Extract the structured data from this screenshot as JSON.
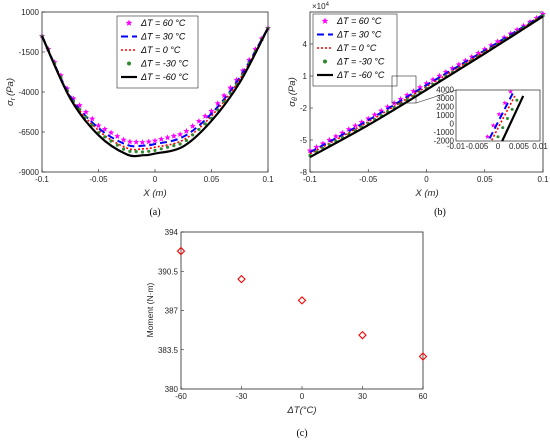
{
  "captions": {
    "a": "(a)",
    "b": "(b)",
    "c": "(c)"
  },
  "colors": {
    "p60": "#ff00ff",
    "p30": "#0000ff",
    "p0": "#ff0000",
    "m30": "#2e8b2e",
    "m60": "#000000",
    "moment": "#ff0000",
    "axis": "#262626"
  },
  "chart_data": [
    {
      "type": "line",
      "panel": "a",
      "xlabel": "X (m)",
      "ylabel": "σ_r (Pa)",
      "ylabel_main": "σ",
      "ylabel_sub": "r",
      "ylabel_unit": "(Pa)",
      "xlim": [
        -0.1,
        0.1
      ],
      "ylim": [
        -9000,
        1000
      ],
      "x_ticks": [
        -0.1,
        -0.05,
        0,
        0.05,
        0.1
      ],
      "x_tick_labels": [
        "-0.1",
        "-0.05",
        "0",
        "0.05",
        "0.1"
      ],
      "y_ticks": [
        1000,
        -1500,
        -4000,
        -6500,
        -9000
      ],
      "y_tick_labels": [
        "1000",
        "-1500",
        "-4000",
        "-6500",
        "-9000"
      ],
      "legend": "top-center",
      "legend_entries": [
        "ΔT = 60 °C",
        "ΔT = 30 °C",
        "ΔT =   0 °C",
        "ΔT = -30 °C",
        "ΔT = -60 °C"
      ],
      "x": [
        -0.1,
        -0.075,
        -0.05,
        -0.025,
        -0.01,
        0,
        0.025,
        0.05,
        0.075,
        0.1
      ],
      "series": [
        {
          "name": "ΔT = 60 °C",
          "values": [
            -500,
            -4200,
            -6100,
            -7100,
            -7150,
            -7050,
            -6600,
            -5200,
            -3000,
            0
          ]
        },
        {
          "name": "ΔT = 30 °C",
          "values": [
            -500,
            -4250,
            -6250,
            -7300,
            -7350,
            -7250,
            -6800,
            -5350,
            -3100,
            0
          ]
        },
        {
          "name": "ΔT = 0 °C",
          "values": [
            -500,
            -4300,
            -6400,
            -7500,
            -7550,
            -7450,
            -7000,
            -5500,
            -3200,
            0
          ]
        },
        {
          "name": "ΔT = -30 °C",
          "values": [
            -500,
            -4350,
            -6550,
            -7700,
            -7750,
            -7650,
            -7200,
            -5650,
            -3300,
            0
          ]
        },
        {
          "name": "ΔT = -60 °C",
          "values": [
            -500,
            -4400,
            -6700,
            -7900,
            -7950,
            -7850,
            -7400,
            -5800,
            -3400,
            0
          ]
        }
      ]
    },
    {
      "type": "line",
      "panel": "b",
      "xlabel": "X (m)",
      "ylabel": "σ_θ (Pa)",
      "ylabel_main": "σ",
      "ylabel_sub": "θ",
      "ylabel_unit": "(Pa)",
      "xlim": [
        -0.1,
        0.1
      ],
      "ylim": [
        -8,
        7
      ],
      "y_multiplier": "×10^4",
      "y_mult_base": "×10",
      "y_mult_exp": "4",
      "x_ticks": [
        -0.1,
        -0.05,
        0,
        0.05,
        0.1
      ],
      "x_tick_labels": [
        "-0.1",
        "-0.05",
        "0",
        "0.05",
        "0.1"
      ],
      "y_ticks": [
        4,
        1,
        -2,
        -5,
        -8
      ],
      "y_tick_labels": [
        "4",
        "1",
        "-2",
        "-5",
        "-8"
      ],
      "legend": "top-left",
      "legend_entries": [
        "ΔT = 60 °C",
        "ΔT = 30 °C",
        "ΔT =   0 °C",
        "ΔT = -30 °C",
        "ΔT = -60 °C"
      ],
      "x": [
        -0.1,
        -0.05,
        0,
        0.05,
        0.1
      ],
      "series": [
        {
          "name": "ΔT = 60 °C",
          "values": [
            -6.0,
            -3.0,
            0.3,
            3.5,
            6.8
          ]
        },
        {
          "name": "ΔT = 30 °C",
          "values": [
            -6.15,
            -3.15,
            0.15,
            3.4,
            6.75
          ]
        },
        {
          "name": "ΔT = 0 °C",
          "values": [
            -6.3,
            -3.3,
            0.0,
            3.3,
            6.7
          ]
        },
        {
          "name": "ΔT = -30 °C",
          "values": [
            -6.45,
            -3.45,
            -0.15,
            3.2,
            6.65
          ]
        },
        {
          "name": "ΔT = -60 °C",
          "values": [
            -6.6,
            -3.6,
            -0.3,
            3.1,
            6.6
          ]
        }
      ],
      "inset": {
        "xlim": [
          -0.01,
          0.01
        ],
        "ylim": [
          -2000,
          4000
        ],
        "x_ticks": [
          -0.01,
          -0.005,
          0,
          0.005,
          0.01
        ],
        "x_tick_labels": [
          "-0.01",
          "-0.005",
          "0",
          "0.005",
          "0.01"
        ],
        "y_ticks": [
          4000,
          3000,
          2000,
          1000,
          0,
          -1000,
          -2000
        ],
        "y_tick_labels": [
          "4000",
          "3000",
          "2000",
          "1000",
          "0",
          "-1000",
          "-2000"
        ],
        "series": [
          {
            "name": "ΔT = 60 °C",
            "points": [
              [
                -0.0025,
                -1500
              ],
              [
                0.003,
                3800
              ]
            ]
          },
          {
            "name": "ΔT = 30 °C",
            "points": [
              [
                -0.002,
                -1700
              ],
              [
                0.0035,
                3600
              ]
            ]
          },
          {
            "name": "ΔT = 0 °C",
            "points": [
              [
                -0.0015,
                -1900
              ],
              [
                0.004,
                3300
              ]
            ]
          },
          {
            "name": "ΔT = -30 °C",
            "points": [
              [
                0.0,
                -1500
              ],
              [
                0.0045,
                2800
              ]
            ]
          },
          {
            "name": "ΔT = -60 °C",
            "points": [
              [
                0.001,
                -2000
              ],
              [
                0.006,
                3300
              ]
            ]
          }
        ]
      }
    },
    {
      "type": "scatter",
      "panel": "c",
      "xlabel": "ΔT(°C)",
      "ylabel": "Moment (N·m)",
      "xlim": [
        -60,
        60
      ],
      "ylim": [
        380,
        394
      ],
      "x_ticks": [
        -60,
        -30,
        0,
        30,
        60
      ],
      "x_tick_labels": [
        "-60",
        "-30",
        "0",
        "30",
        "60"
      ],
      "y_ticks": [
        394,
        390.5,
        387,
        383.5,
        380
      ],
      "y_tick_labels": [
        "394",
        "390.5",
        "387",
        "383.5",
        "380"
      ],
      "x": [
        -60,
        -30,
        0,
        30,
        60
      ],
      "values": [
        392.3,
        389.8,
        387.9,
        384.8,
        382.9
      ]
    }
  ]
}
